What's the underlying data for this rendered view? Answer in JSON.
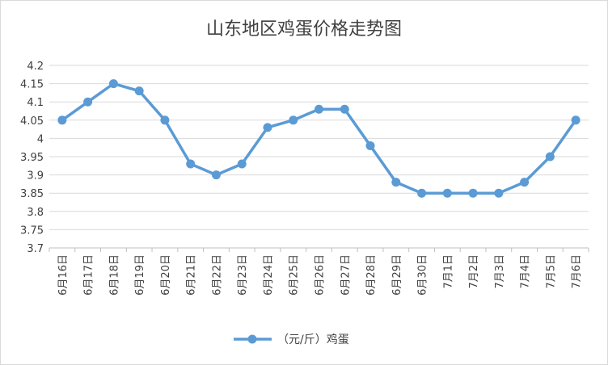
{
  "chart_data": {
    "type": "line",
    "title": "山东地区鸡蛋价格走势图",
    "xlabel": "",
    "ylabel": "",
    "categories": [
      "6月16日",
      "6月17日",
      "6月18日",
      "6月19日",
      "6月20日",
      "6月21日",
      "6月22日",
      "6月23日",
      "6月24日",
      "6月25日",
      "6月26日",
      "6月27日",
      "6月28日",
      "6月29日",
      "6月30日",
      "7月1日",
      "7月2日",
      "7月3日",
      "7月4日",
      "7月5日",
      "7月6日"
    ],
    "series": [
      {
        "name": "（元/斤）鸡蛋",
        "color": "#5b9bd5",
        "values": [
          4.05,
          4.1,
          4.15,
          4.13,
          4.05,
          3.93,
          3.9,
          3.93,
          4.03,
          4.05,
          4.08,
          4.08,
          3.98,
          3.88,
          3.85,
          3.85,
          3.85,
          3.85,
          3.88,
          3.95,
          4.05
        ]
      }
    ],
    "ylim": [
      3.7,
      4.2
    ],
    "yticks": [
      3.7,
      3.75,
      3.8,
      3.85,
      3.9,
      3.95,
      4,
      4.05,
      4.1,
      4.15,
      4.2
    ],
    "ytick_labels": [
      "3.7",
      "3.75",
      "3.8",
      "3.85",
      "3.9",
      "3.95",
      "4",
      "4.05",
      "4.1",
      "4.15",
      "4.2"
    ],
    "grid": true,
    "legend": "bottom"
  }
}
